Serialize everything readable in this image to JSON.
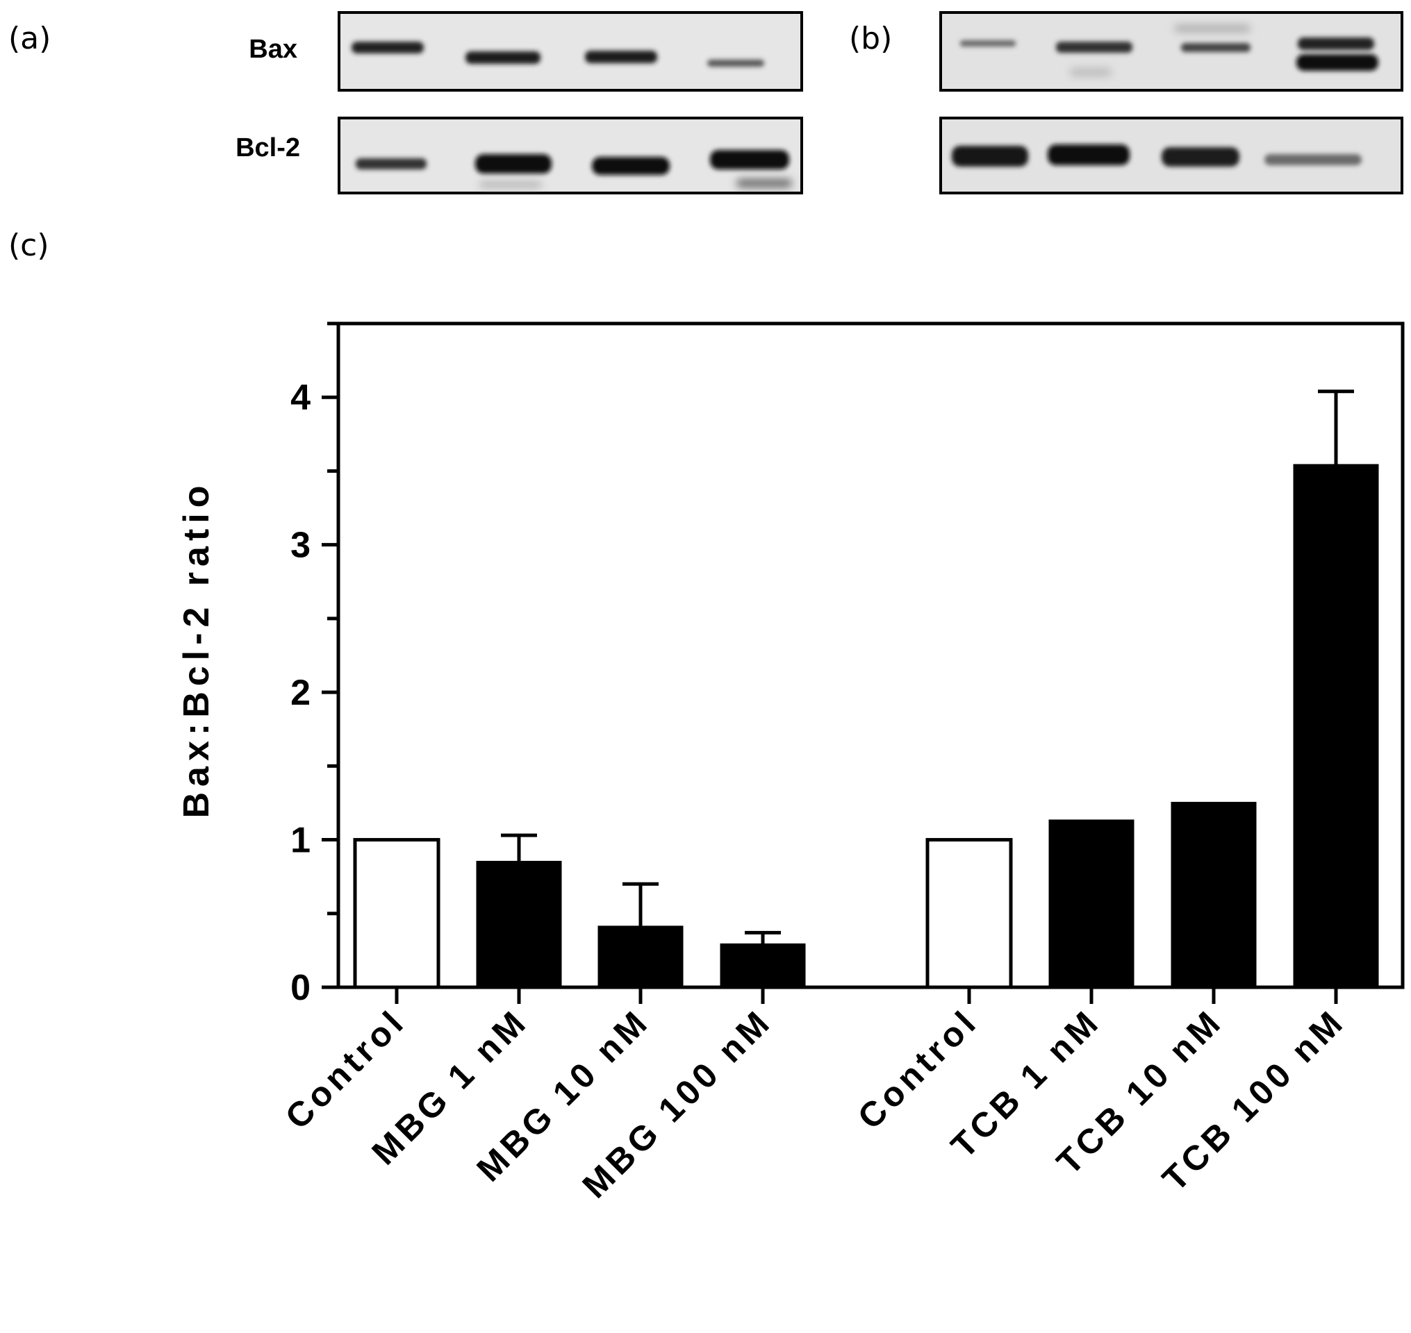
{
  "panels": {
    "a": "(a)",
    "b": "(b)",
    "c": "(c)"
  },
  "blots": {
    "row_labels": [
      "Bax",
      "Bcl-2"
    ]
  },
  "chart_data": {
    "type": "bar",
    "title": "",
    "xlabel": "",
    "ylabel": "Bax:Bcl-2 ratio",
    "ylim": [
      0,
      4.5
    ],
    "yticks": [
      0,
      1,
      2,
      3,
      4
    ],
    "grid": false,
    "categories": [
      "Control",
      "MBG 1 nM",
      "MBG 10 nM",
      "MBG 100 nM",
      "Control",
      "TCB 1 nM",
      "TCB 10 nM",
      "TCB 100 nM"
    ],
    "values": [
      1.0,
      0.85,
      0.41,
      0.29,
      1.0,
      1.13,
      1.25,
      3.54
    ],
    "errors": [
      0,
      0.18,
      0.29,
      0.08,
      0,
      0,
      0,
      0.5
    ],
    "fill": [
      "open",
      "filled",
      "filled",
      "filled",
      "open",
      "filled",
      "filled",
      "filled"
    ],
    "colors": {
      "filled": "#000000",
      "open": "#ffffff",
      "stroke": "#000000"
    }
  }
}
